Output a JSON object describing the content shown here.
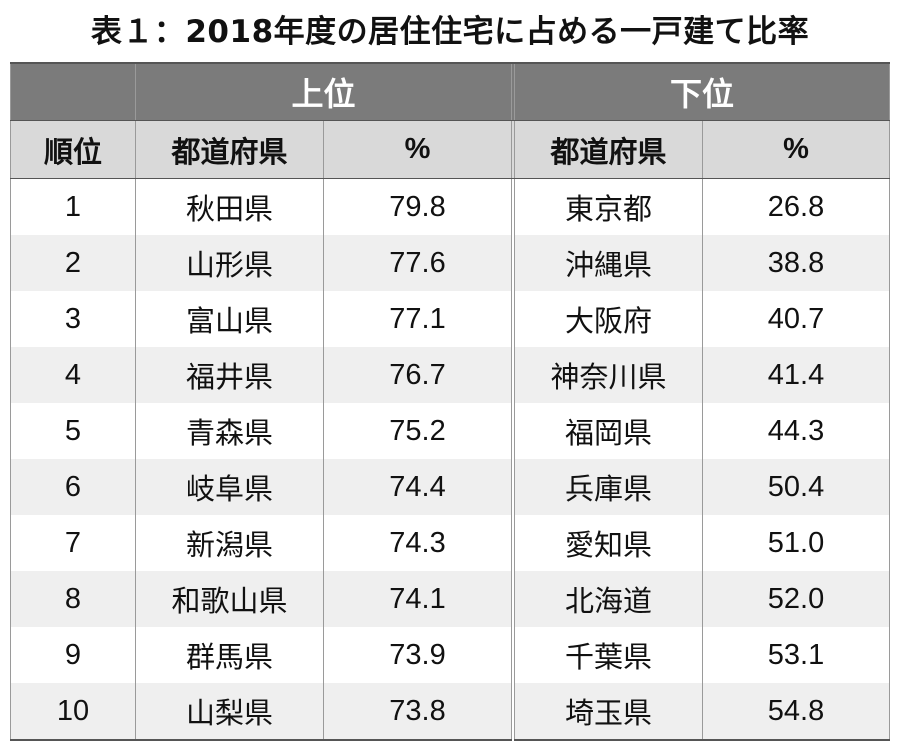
{
  "title": "表１：2018年度の居住住宅に占める一戸建て比率",
  "header": {
    "top_label": "上位",
    "bottom_label": "下位",
    "rank_label": "順位",
    "pref_label": "都道府県",
    "pct_label": "%"
  },
  "chart_data": {
    "type": "table",
    "title": "表１：2018年度の居住住宅に占める一戸建て比率",
    "columns": [
      "順位",
      "上位 都道府県",
      "上位 %",
      "下位 都道府県",
      "下位 %"
    ],
    "rows": [
      {
        "rank": "1",
        "top_pref": "秋田県",
        "top_pct": "79.8",
        "bottom_pref": "東京都",
        "bottom_pct": "26.8"
      },
      {
        "rank": "2",
        "top_pref": "山形県",
        "top_pct": "77.6",
        "bottom_pref": "沖縄県",
        "bottom_pct": "38.8"
      },
      {
        "rank": "3",
        "top_pref": "富山県",
        "top_pct": "77.1",
        "bottom_pref": "大阪府",
        "bottom_pct": "40.7"
      },
      {
        "rank": "4",
        "top_pref": "福井県",
        "top_pct": "76.7",
        "bottom_pref": "神奈川県",
        "bottom_pct": "41.4"
      },
      {
        "rank": "5",
        "top_pref": "青森県",
        "top_pct": "75.2",
        "bottom_pref": "福岡県",
        "bottom_pct": "44.3"
      },
      {
        "rank": "6",
        "top_pref": "岐阜県",
        "top_pct": "74.4",
        "bottom_pref": "兵庫県",
        "bottom_pct": "50.4"
      },
      {
        "rank": "7",
        "top_pref": "新潟県",
        "top_pct": "74.3",
        "bottom_pref": "愛知県",
        "bottom_pct": "51.0"
      },
      {
        "rank": "8",
        "top_pref": "和歌山県",
        "top_pct": "74.1",
        "bottom_pref": "北海道",
        "bottom_pct": "52.0"
      },
      {
        "rank": "9",
        "top_pref": "群馬県",
        "top_pct": "73.9",
        "bottom_pref": "千葉県",
        "bottom_pct": "53.1"
      },
      {
        "rank": "10",
        "top_pref": "山梨県",
        "top_pct": "73.8",
        "bottom_pref": "埼玉県",
        "bottom_pct": "54.8"
      }
    ]
  }
}
